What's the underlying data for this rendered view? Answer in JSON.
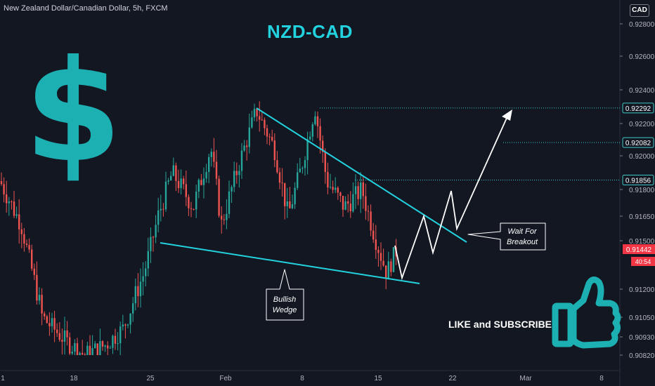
{
  "chart": {
    "symbol_title": "New Zealand Dollar/Canadian Dollar, 5h, FXCM",
    "main_title": "NZD-CAD",
    "currency_badge": "CAD",
    "cta_text": "LIKE and SUBSCRIBE",
    "dollar_sign": "$",
    "countdown": "40:54",
    "icons": [
      "dollar-sign-icon",
      "thumbs-up-icon"
    ]
  },
  "colors": {
    "background": "#131722",
    "accent_cyan": "#22d3df",
    "icon_teal": "#1cb0b3",
    "up_candle": "#26a69a",
    "down_candle": "#ef5350",
    "price_badge_red": "#f23645",
    "level_line": "#3fc7c7"
  },
  "chart_data": {
    "type": "candlestick",
    "title": "NZD-CAD",
    "y_axis_ticks": [
      0.928,
      0.926,
      0.924,
      0.922,
      0.92,
      0.918,
      0.9165,
      0.915,
      0.912,
      0.9105,
      0.9093,
      0.9082
    ],
    "y_axis_labels": [
      "0.92800",
      "0.92600",
      "0.92400",
      "0.92200",
      "0.92000",
      "0.91800",
      "0.91650",
      "0.91500",
      "0.91200",
      "0.91050",
      "0.90930",
      "0.90820"
    ],
    "x_axis_labels": [
      "1",
      "18",
      "25",
      "Feb",
      "8",
      "15",
      "22",
      "Mar",
      "8"
    ],
    "price_levels": [
      {
        "value": 0.92292,
        "label": "0.92292"
      },
      {
        "value": 0.92082,
        "label": "0.92082"
      },
      {
        "value": 0.91856,
        "label": "0.91856"
      }
    ],
    "current_price": {
      "value": 0.91442,
      "label": "0.91442"
    },
    "pattern_label": "Bullish Wedge",
    "projection_label": "Wait For Breakout"
  }
}
